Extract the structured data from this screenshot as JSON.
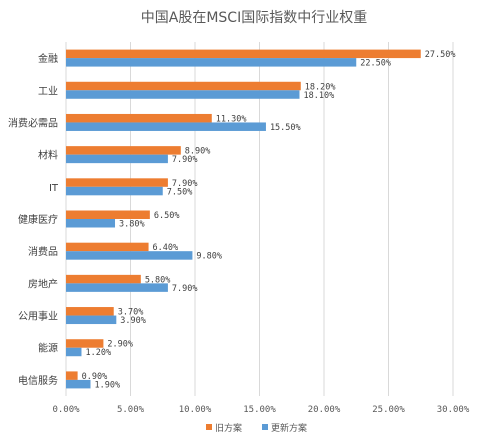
{
  "chart_data": {
    "type": "bar",
    "orientation": "horizontal",
    "title": "中国A股在MSCI国际指数中行业权重",
    "categories": [
      "金融",
      "工业",
      "消费必需品",
      "材料",
      "IT",
      "健康医疗",
      "消费品",
      "房地产",
      "公用事业",
      "能源",
      "电信服务"
    ],
    "series": [
      {
        "name": "旧方案",
        "color": "#ed7d31",
        "values": [
          27.5,
          18.2,
          11.3,
          8.9,
          7.9,
          6.5,
          6.4,
          5.8,
          3.7,
          2.9,
          0.9
        ],
        "labels": [
          "27.50%",
          "18.20%",
          "11.30%",
          "8.90%",
          "7.90%",
          "6.50%",
          "6.40%",
          "5.80%",
          "3.70%",
          "2.90%",
          "0.90%"
        ]
      },
      {
        "name": "更新方案",
        "color": "#5b9bd5",
        "values": [
          22.5,
          18.1,
          15.5,
          7.9,
          7.5,
          3.8,
          9.8,
          7.9,
          3.9,
          1.2,
          1.9
        ],
        "labels": [
          "22.50%",
          "18.10%",
          "15.50%",
          "7.90%",
          "7.50%",
          "3.80%",
          "9.80%",
          "7.90%",
          "3.90%",
          "1.20%",
          "1.90%"
        ]
      }
    ],
    "xlim": [
      0,
      30
    ],
    "xticks": [
      0,
      5,
      10,
      15,
      20,
      25,
      30
    ],
    "xtick_labels": [
      "0.00%",
      "5.00%",
      "10.00%",
      "15.00%",
      "20.00%",
      "25.00%",
      "30.00%"
    ],
    "grid": true,
    "legend_position": "bottom"
  }
}
